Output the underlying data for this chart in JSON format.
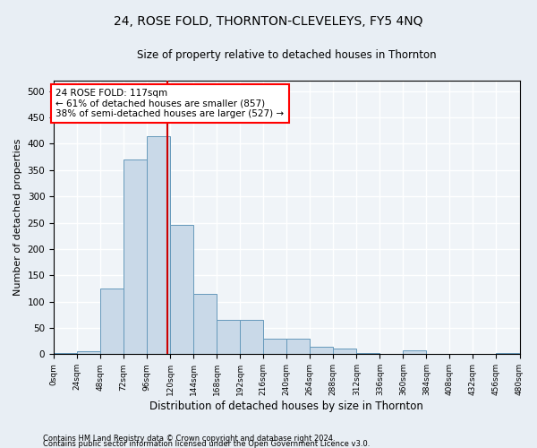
{
  "title": "24, ROSE FOLD, THORNTON-CLEVELEYS, FY5 4NQ",
  "subtitle": "Size of property relative to detached houses in Thornton",
  "xlabel": "Distribution of detached houses by size in Thornton",
  "ylabel": "Number of detached properties",
  "footnote1": "Contains HM Land Registry data © Crown copyright and database right 2024.",
  "footnote2": "Contains public sector information licensed under the Open Government Licence v3.0.",
  "bin_edges": [
    0,
    24,
    48,
    72,
    96,
    120,
    144,
    168,
    192,
    216,
    240,
    264,
    288,
    312,
    336,
    360,
    384,
    408,
    432,
    456,
    480
  ],
  "bar_values": [
    2,
    5,
    125,
    370,
    415,
    245,
    115,
    65,
    65,
    30,
    30,
    15,
    10,
    3,
    0,
    8,
    0,
    0,
    0,
    2
  ],
  "bar_color": "#c9d9e8",
  "bar_edge_color": "#6699bb",
  "property_size": 117,
  "annotation_line1": "24 ROSE FOLD: 117sqm",
  "annotation_line2": "← 61% of detached houses are smaller (857)",
  "annotation_line3": "38% of semi-detached houses are larger (527) →",
  "annotation_box_color": "white",
  "annotation_box_edge": "red",
  "vline_color": "#cc0000",
  "ylim": [
    0,
    520
  ],
  "yticks": [
    0,
    50,
    100,
    150,
    200,
    250,
    300,
    350,
    400,
    450,
    500
  ],
  "bg_color": "#e8eef4",
  "plot_bg_color": "#f0f4f8",
  "grid_color": "white",
  "title_fontsize": 10,
  "subtitle_fontsize": 8.5,
  "ylabel_fontsize": 8,
  "xlabel_fontsize": 8.5,
  "footnote_fontsize": 6,
  "annot_fontsize": 7.5
}
